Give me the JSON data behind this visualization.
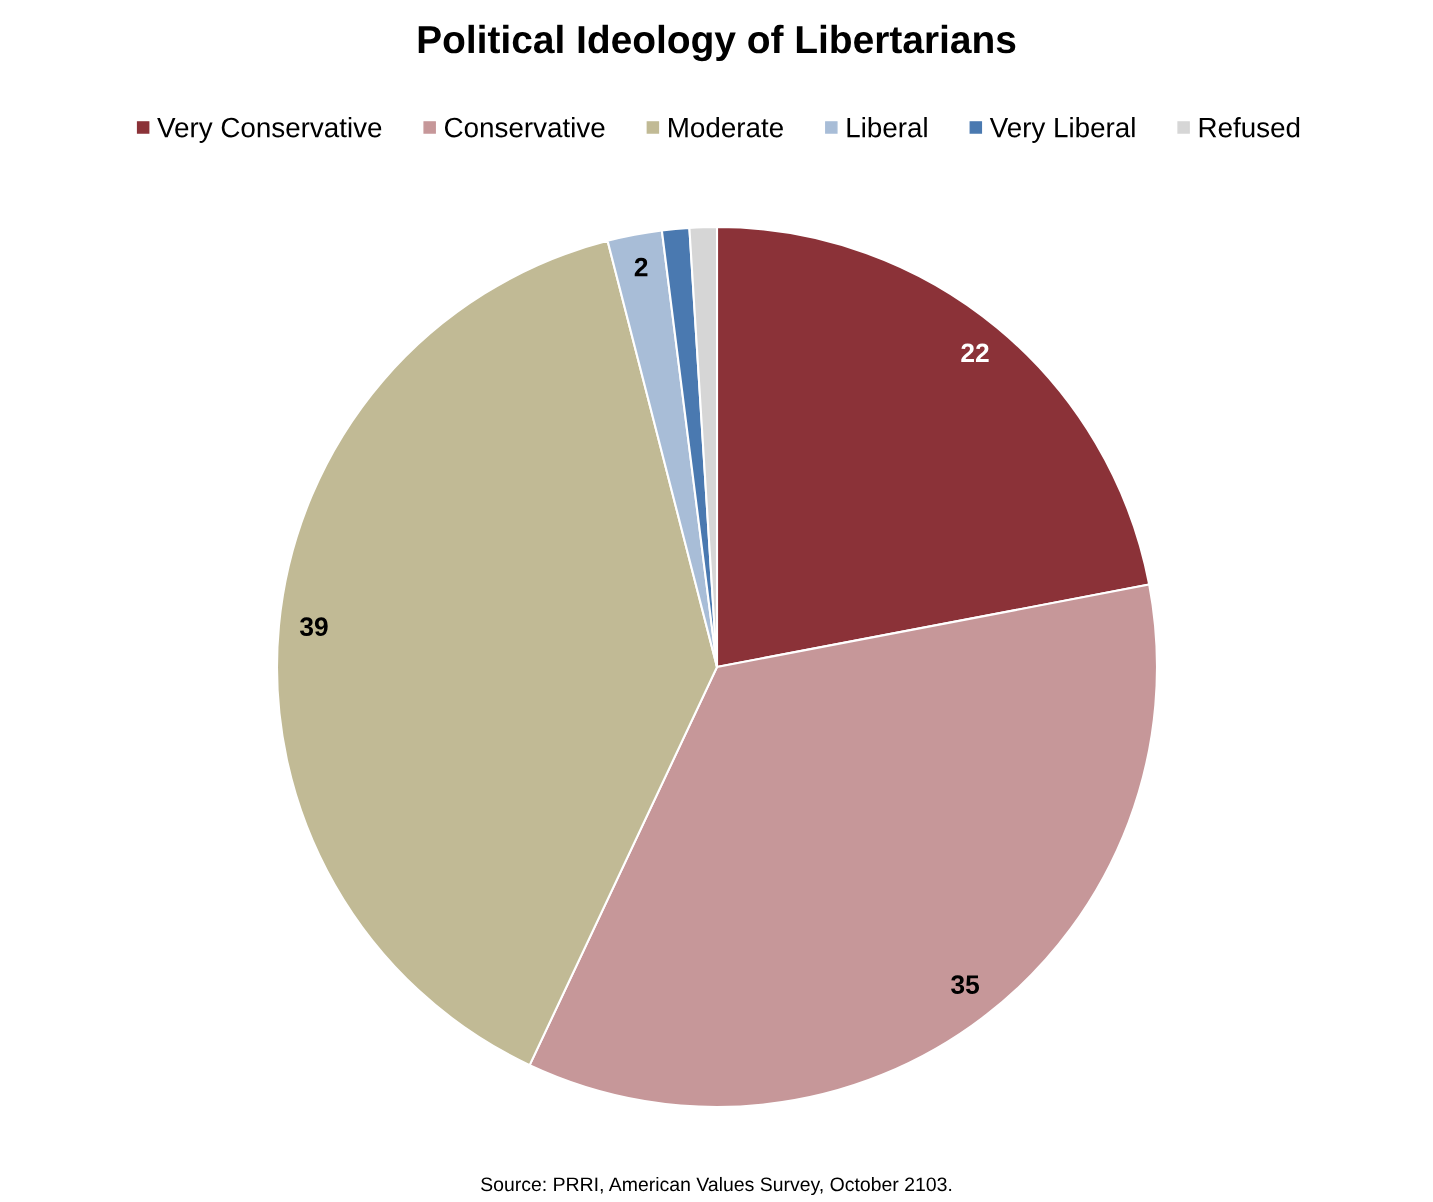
{
  "chart_data": {
    "type": "pie",
    "title": "Political Ideology of Libertarians",
    "categories": [
      "Very Conservative",
      "Conservative",
      "Moderate",
      "Liberal",
      "Very Liberal",
      "Refused"
    ],
    "values": [
      22,
      35,
      39,
      2,
      1,
      1
    ],
    "colors": [
      "#8b3238",
      "#c69799",
      "#c1ba95",
      "#a8bdd7",
      "#4a79b0",
      "#d6d6d6"
    ],
    "value_labels": [
      "22",
      "35",
      "39",
      "2",
      null,
      null
    ],
    "legend": "top",
    "annotations": [
      "Source: PRRI, American Values Survey, October 2103."
    ]
  }
}
